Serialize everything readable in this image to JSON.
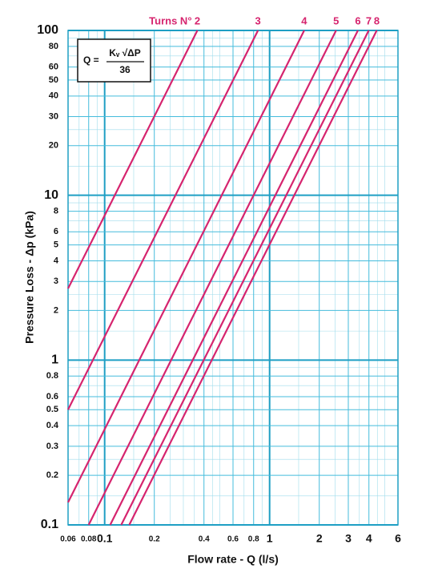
{
  "chart_data": {
    "type": "line",
    "x_label": "Flow rate - Q (l/s)",
    "y_label": "Pressure Loss  - Δp (kPa)",
    "turns_label": "Turns N°",
    "formula": {
      "lhs": "Q =",
      "numerator": "Kᵥ √ΔP",
      "denominator": "36"
    },
    "log_x": true,
    "log_y": true,
    "grid": true,
    "xlim": [
      0.06,
      6
    ],
    "ylim": [
      0.1,
      100
    ],
    "xticks": [
      0.06,
      0.08,
      0.1,
      0.2,
      0.4,
      0.6,
      0.8,
      1,
      2,
      3,
      4,
      6
    ],
    "yticks": [
      0.1,
      0.2,
      0.3,
      0.4,
      0.5,
      0.6,
      0.8,
      1,
      2,
      3,
      4,
      5,
      6,
      8,
      10,
      20,
      30,
      40,
      50,
      60,
      80,
      100
    ],
    "xticks_minor": [
      0.07,
      0.09,
      0.15,
      0.25,
      0.3,
      0.35,
      0.45,
      0.5,
      0.7,
      0.9,
      1.5,
      2.5,
      3.5,
      4.5,
      5
    ],
    "yticks_minor": [
      0.15,
      0.25,
      0.7,
      0.9,
      1.5,
      2.5,
      7,
      9,
      15,
      25,
      70,
      90
    ],
    "series": [
      {
        "name": "2",
        "color": "#d6246e",
        "x": [
          0.06,
          0.365
        ],
        "values": [
          2.72,
          100
        ]
      },
      {
        "name": "3",
        "color": "#d6246e",
        "x": [
          0.06,
          0.85
        ],
        "values": [
          0.5,
          100
        ]
      },
      {
        "name": "4",
        "color": "#d6246e",
        "x": [
          0.06,
          1.62
        ],
        "values": [
          0.137,
          100
        ]
      },
      {
        "name": "5",
        "color": "#d6246e",
        "x": [
          0.08,
          2.53
        ],
        "values": [
          0.1,
          100
        ]
      },
      {
        "name": "6",
        "color": "#d6246e",
        "x": [
          0.108,
          3.43
        ],
        "values": [
          0.1,
          100
        ]
      },
      {
        "name": "7",
        "color": "#d6246e",
        "x": [
          0.126,
          3.99
        ],
        "values": [
          0.1,
          100
        ]
      },
      {
        "name": "8",
        "color": "#d6246e",
        "x": [
          0.141,
          4.46
        ],
        "values": [
          0.1,
          100
        ]
      }
    ]
  }
}
